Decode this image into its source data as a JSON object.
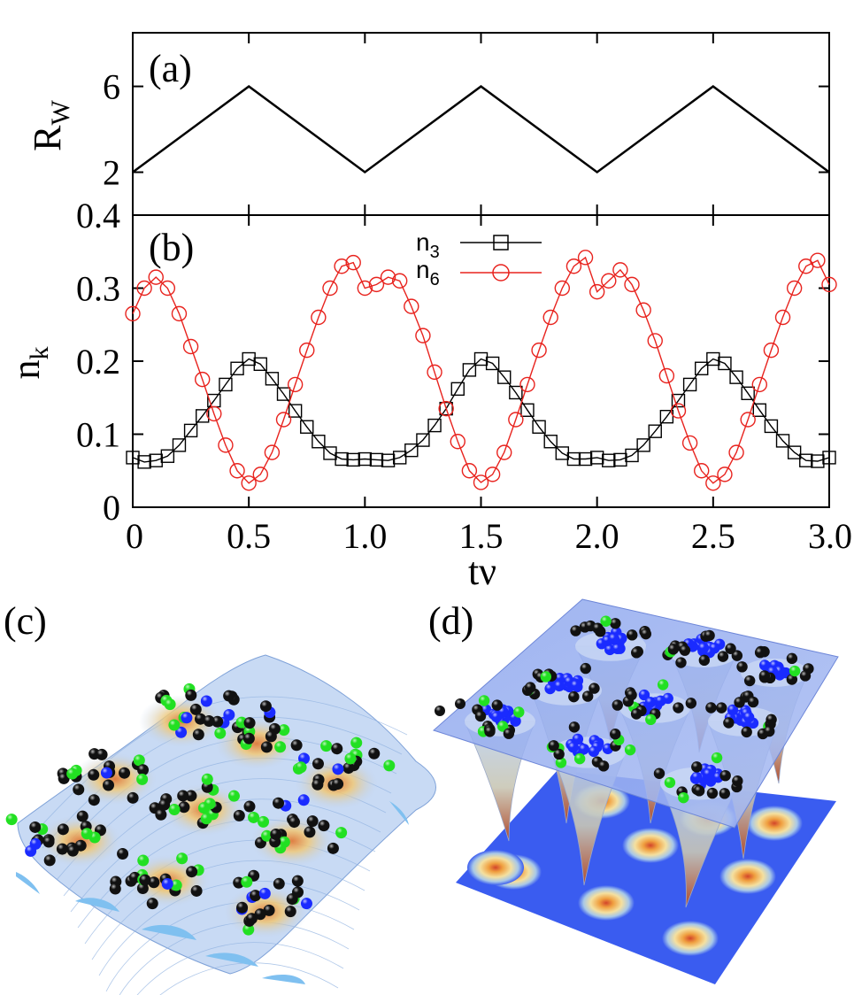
{
  "chart_data": [
    {
      "panel": "a",
      "type": "line",
      "panel_label": "(a)",
      "ylabel": "R",
      "ylabel_sub": "W",
      "xlim": [
        0,
        3.0
      ],
      "ylim": [
        0,
        8.5
      ],
      "yticks": [
        "2",
        "6"
      ],
      "ytick_values": [
        2,
        6
      ],
      "x": [
        0,
        0.5,
        1.0,
        1.5,
        2.0,
        2.5,
        3.0
      ],
      "y": [
        2,
        6,
        2,
        6,
        2,
        6,
        2
      ],
      "color": "#000000"
    },
    {
      "panel": "b",
      "type": "line",
      "panel_label": "(b)",
      "ylabel": "n",
      "ylabel_sub": "k",
      "xlabel": "tν",
      "xlim": [
        0,
        3.0
      ],
      "ylim": [
        0,
        0.4
      ],
      "yticks": [
        "0",
        "0.1",
        "0.2",
        "0.3",
        "0.4"
      ],
      "ytick_values": [
        0,
        0.1,
        0.2,
        0.3,
        0.4
      ],
      "xticks": [
        "0",
        "0.5",
        "1.0",
        "1.5",
        "2.0",
        "2.5",
        "3.0"
      ],
      "xtick_values": [
        0,
        0.5,
        1.0,
        1.5,
        2.0,
        2.5,
        3.0
      ],
      "legend_position": "top-center",
      "series": [
        {
          "name": "n",
          "name_sub": "3",
          "marker": "square",
          "color": "#000000",
          "x": [
            0,
            0.05,
            0.1,
            0.15,
            0.2,
            0.25,
            0.3,
            0.35,
            0.4,
            0.45,
            0.5,
            0.55,
            0.6,
            0.65,
            0.7,
            0.75,
            0.8,
            0.85,
            0.9,
            0.95,
            1.0,
            1.05,
            1.1,
            1.15,
            1.2,
            1.25,
            1.3,
            1.35,
            1.4,
            1.45,
            1.5,
            1.55,
            1.6,
            1.65,
            1.7,
            1.75,
            1.8,
            1.85,
            1.9,
            1.95,
            2.0,
            2.05,
            2.1,
            2.15,
            2.2,
            2.25,
            2.3,
            2.35,
            2.4,
            2.45,
            2.5,
            2.55,
            2.6,
            2.65,
            2.7,
            2.75,
            2.8,
            2.85,
            2.9,
            2.95,
            3.0
          ],
          "values": [
            0.068,
            0.062,
            0.064,
            0.07,
            0.085,
            0.105,
            0.125,
            0.146,
            0.168,
            0.19,
            0.203,
            0.196,
            0.176,
            0.155,
            0.132,
            0.11,
            0.09,
            0.074,
            0.066,
            0.065,
            0.066,
            0.065,
            0.064,
            0.068,
            0.078,
            0.092,
            0.112,
            0.135,
            0.162,
            0.188,
            0.203,
            0.197,
            0.178,
            0.157,
            0.133,
            0.11,
            0.09,
            0.074,
            0.066,
            0.066,
            0.068,
            0.064,
            0.065,
            0.071,
            0.085,
            0.104,
            0.124,
            0.146,
            0.168,
            0.19,
            0.203,
            0.197,
            0.178,
            0.156,
            0.133,
            0.111,
            0.091,
            0.075,
            0.064,
            0.063,
            0.068
          ]
        },
        {
          "name": "n",
          "name_sub": "6",
          "marker": "circle",
          "color": "#e8231e",
          "x": [
            0,
            0.05,
            0.1,
            0.15,
            0.2,
            0.25,
            0.3,
            0.35,
            0.4,
            0.45,
            0.5,
            0.55,
            0.6,
            0.65,
            0.7,
            0.75,
            0.8,
            0.85,
            0.9,
            0.95,
            1.0,
            1.05,
            1.1,
            1.15,
            1.2,
            1.25,
            1.3,
            1.35,
            1.4,
            1.45,
            1.5,
            1.55,
            1.6,
            1.65,
            1.7,
            1.75,
            1.8,
            1.85,
            1.9,
            1.95,
            2.0,
            2.05,
            2.1,
            2.15,
            2.2,
            2.25,
            2.3,
            2.35,
            2.4,
            2.45,
            2.5,
            2.55,
            2.6,
            2.65,
            2.7,
            2.75,
            2.8,
            2.85,
            2.9,
            2.95,
            3.0
          ],
          "values": [
            0.265,
            0.3,
            0.315,
            0.3,
            0.265,
            0.22,
            0.175,
            0.128,
            0.085,
            0.05,
            0.033,
            0.045,
            0.075,
            0.12,
            0.168,
            0.215,
            0.26,
            0.3,
            0.33,
            0.335,
            0.3,
            0.305,
            0.315,
            0.31,
            0.275,
            0.235,
            0.185,
            0.135,
            0.09,
            0.05,
            0.034,
            0.045,
            0.075,
            0.12,
            0.168,
            0.215,
            0.26,
            0.3,
            0.33,
            0.342,
            0.295,
            0.31,
            0.325,
            0.305,
            0.27,
            0.228,
            0.18,
            0.132,
            0.088,
            0.05,
            0.033,
            0.045,
            0.075,
            0.12,
            0.168,
            0.215,
            0.26,
            0.3,
            0.33,
            0.338,
            0.305
          ]
        }
      ]
    }
  ],
  "panels": {
    "c_label": "(c)",
    "d_label": "(d)"
  },
  "colors": {
    "particle_black": "#111111",
    "particle_green": "#22e022",
    "particle_blue": "#1a2bff",
    "plane_blue": "#3a5cf0",
    "surface_light": "#bcd2f2",
    "surface_warm": "#f0c877"
  }
}
